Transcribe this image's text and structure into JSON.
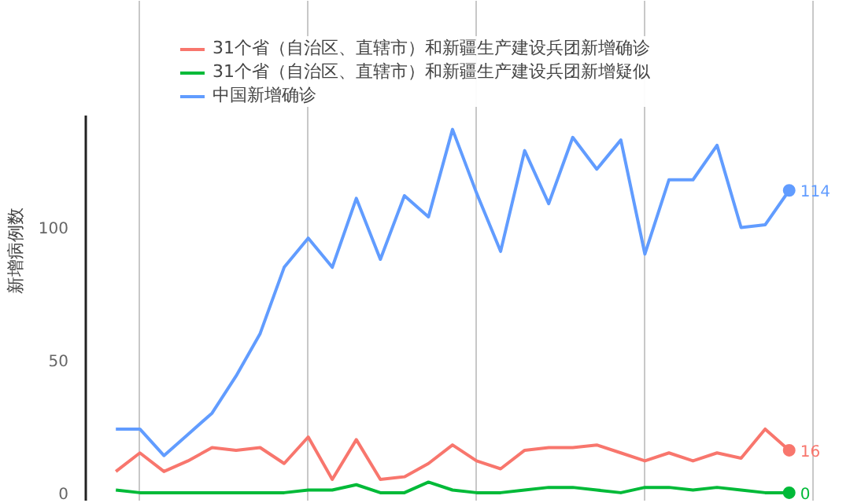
{
  "chart_data": {
    "type": "line",
    "ylabel": "新增病例数",
    "categories": [
      null,
      null,
      null,
      null,
      null,
      null,
      null,
      null,
      null,
      null,
      null,
      null,
      null,
      null,
      null,
      null,
      null,
      null,
      null,
      null,
      null,
      null,
      null,
      null,
      null,
      null,
      null,
      null,
      null
    ],
    "series": [
      {
        "name": "31个省（自治区、直辖市）和新疆生产建设兵团新增确诊",
        "color": "#f8766d",
        "values": [
          8,
          15,
          8,
          12,
          17,
          16,
          17,
          11,
          21,
          5,
          20,
          5,
          6,
          11,
          18,
          12,
          9,
          16,
          17,
          17,
          18,
          15,
          12,
          15,
          12,
          15,
          13,
          24,
          16
        ],
        "value_labels": [
          null,
          null,
          null,
          null,
          null,
          null,
          null,
          null,
          null,
          null,
          null,
          null,
          null,
          null,
          null,
          null,
          null,
          null,
          null,
          null,
          null,
          null,
          null,
          null,
          null,
          null,
          null,
          null,
          "16"
        ]
      },
      {
        "name": "31个省（自治区、直辖市）和新疆生产建设兵团新增疑似",
        "color": "#00ba38",
        "values": [
          1,
          0,
          0,
          0,
          0,
          0,
          0,
          0,
          1,
          1,
          3,
          0,
          0,
          4,
          1,
          0,
          0,
          1,
          2,
          2,
          1,
          0,
          2,
          2,
          1,
          2,
          1,
          0,
          0
        ],
        "value_labels": [
          null,
          null,
          null,
          null,
          null,
          null,
          null,
          null,
          null,
          null,
          null,
          null,
          null,
          null,
          null,
          null,
          null,
          null,
          null,
          null,
          null,
          null,
          null,
          null,
          null,
          null,
          null,
          null,
          "0"
        ]
      },
      {
        "name": "中国新增确诊",
        "color": "#619cff",
        "values": [
          24,
          24,
          14,
          22,
          30,
          44,
          60,
          85,
          96,
          85,
          111,
          88,
          112,
          104,
          137,
          113,
          91,
          129,
          109,
          134,
          122,
          133,
          90,
          118,
          118,
          131,
          100,
          101,
          114
        ],
        "value_labels": [
          null,
          null,
          null,
          null,
          null,
          null,
          null,
          null,
          null,
          null,
          null,
          null,
          null,
          null,
          null,
          null,
          null,
          null,
          null,
          null,
          null,
          null,
          null,
          null,
          null,
          null,
          null,
          null,
          "114"
        ]
      }
    ],
    "ylim": [
      -3,
      142
    ],
    "yticks": [
      0,
      50,
      100
    ],
    "grid": "x",
    "legend": "top",
    "tick_labels": "y",
    "marker": "none",
    "line_style": "solid"
  }
}
